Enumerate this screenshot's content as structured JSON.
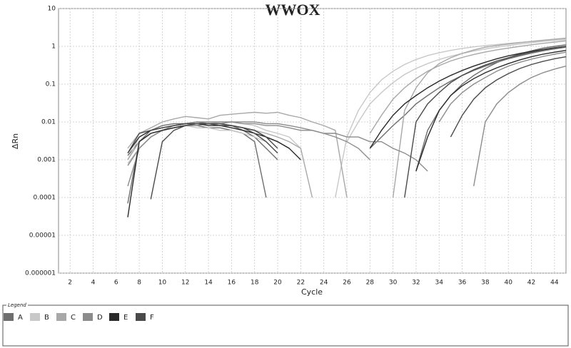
{
  "chart_data": {
    "type": "line",
    "title": "WWOX",
    "x_label": "Cycle",
    "y_label": "ΔRn",
    "log_y": true,
    "grid": true,
    "legend_title": "Legend",
    "legend_position": "bottom",
    "xlim": [
      1,
      45
    ],
    "xticks": [
      2,
      4,
      6,
      8,
      10,
      12,
      14,
      16,
      18,
      20,
      22,
      24,
      26,
      28,
      30,
      32,
      34,
      36,
      38,
      40,
      42,
      44
    ],
    "ylim": [
      1e-06,
      10
    ],
    "yticks": [
      1e-06,
      1e-05,
      0.0001,
      0.001,
      0.01,
      0.1,
      1,
      10
    ],
    "x": [
      1,
      2,
      3,
      4,
      5,
      6,
      7,
      8,
      9,
      10,
      11,
      12,
      13,
      14,
      15,
      16,
      17,
      18,
      19,
      20,
      21,
      22,
      23,
      24,
      25,
      26,
      27,
      28,
      29,
      30,
      31,
      32,
      33,
      34,
      35,
      36,
      37,
      38,
      39,
      40,
      41,
      42,
      43,
      44,
      45
    ],
    "series": [
      {
        "name": "A",
        "color": "#6e6e6e",
        "wells": [
          [
            null,
            null,
            null,
            null,
            null,
            null,
            7e-05,
            0.003,
            0.005,
            0.006,
            0.007,
            0.008,
            0.008,
            0.007,
            0.007,
            0.006,
            0.005,
            0.003,
            0.0001,
            null,
            null,
            null,
            null,
            null,
            null,
            null,
            null,
            0.002,
            0.004,
            0.008,
            0.015,
            0.03,
            0.05,
            0.08,
            0.12,
            0.17,
            0.23,
            0.3,
            0.38,
            0.47,
            0.56,
            0.66,
            0.76,
            0.86,
            0.95
          ],
          [
            null,
            null,
            null,
            null,
            null,
            null,
            0.0013,
            0.003,
            0.006,
            0.008,
            0.009,
            0.009,
            0.01,
            0.009,
            0.008,
            0.008,
            0.006,
            0.004,
            0.002,
            0.001,
            null,
            null,
            null,
            null,
            null,
            null,
            null,
            null,
            null,
            null,
            null,
            0.0005,
            0.006,
            0.02,
            0.05,
            0.1,
            0.17,
            0.26,
            0.37,
            0.5,
            0.63,
            0.76,
            0.9,
            1.0,
            1.1
          ]
        ]
      },
      {
        "name": "B",
        "color": "#c8c8c8",
        "wells": [
          [
            null,
            null,
            null,
            null,
            null,
            null,
            0.0008,
            0.002,
            0.004,
            0.006,
            0.007,
            0.008,
            0.009,
            0.009,
            0.01,
            0.01,
            0.009,
            0.008,
            0.006,
            0.005,
            0.004,
            0.002,
            null,
            null,
            null,
            0.003,
            0.01,
            0.03,
            0.06,
            0.11,
            0.18,
            0.26,
            0.35,
            0.45,
            0.55,
            0.65,
            0.75,
            0.85,
            0.95,
            1.05,
            1.15,
            1.25,
            1.35,
            1.45,
            1.55
          ],
          [
            null,
            null,
            null,
            null,
            null,
            null,
            0.001,
            0.004,
            0.006,
            0.007,
            0.008,
            0.008,
            0.007,
            0.007,
            0.006,
            0.006,
            0.005,
            0.004,
            0.003,
            null,
            null,
            null,
            null,
            null,
            0.0001,
            0.004,
            0.02,
            0.06,
            0.13,
            0.22,
            0.33,
            0.45,
            0.57,
            0.68,
            0.78,
            0.88,
            0.97,
            1.05,
            1.12,
            1.2,
            1.27,
            1.34,
            1.4,
            1.45,
            1.5
          ]
        ]
      },
      {
        "name": "C",
        "color": "#a8a8a8",
        "wells": [
          [
            null,
            null,
            null,
            null,
            null,
            null,
            0.002,
            0.005,
            0.007,
            0.01,
            0.012,
            0.014,
            0.013,
            0.012,
            0.015,
            0.016,
            0.017,
            0.018,
            0.017,
            0.018,
            0.015,
            0.013,
            0.01,
            0.008,
            0.006,
            0.0001,
            null,
            null,
            null,
            0.0001,
            0.02,
            0.08,
            0.2,
            0.35,
            0.5,
            0.65,
            0.8,
            0.95,
            1.05,
            1.15,
            1.25,
            1.35,
            1.45,
            1.55,
            1.65
          ],
          [
            null,
            null,
            null,
            null,
            null,
            null,
            0.001,
            0.003,
            0.005,
            0.006,
            0.007,
            0.008,
            0.009,
            0.009,
            0.008,
            0.008,
            0.007,
            0.006,
            0.005,
            0.004,
            0.003,
            0.002,
            0.0001,
            null,
            null,
            null,
            null,
            0.005,
            0.015,
            0.04,
            0.08,
            0.14,
            0.22,
            0.31,
            0.41,
            0.51,
            0.61,
            0.71,
            0.81,
            0.9,
            1.0,
            1.1,
            1.2,
            1.3,
            1.4
          ]
        ]
      },
      {
        "name": "D",
        "color": "#8c8c8c",
        "wells": [
          [
            null,
            null,
            null,
            null,
            null,
            null,
            0.0002,
            0.002,
            0.004,
            0.006,
            0.007,
            0.008,
            0.008,
            0.009,
            0.009,
            0.01,
            0.01,
            0.01,
            0.009,
            0.009,
            0.008,
            0.007,
            0.006,
            0.005,
            0.004,
            0.003,
            0.002,
            0.001,
            null,
            null,
            null,
            null,
            null,
            0.01,
            0.03,
            0.06,
            0.1,
            0.15,
            0.22,
            0.3,
            0.38,
            0.46,
            0.54,
            0.62,
            0.7
          ],
          [
            null,
            null,
            null,
            null,
            null,
            null,
            0.0007,
            0.002,
            0.004,
            0.006,
            0.008,
            0.009,
            0.01,
            0.01,
            0.01,
            0.01,
            0.009,
            0.009,
            0.008,
            0.008,
            0.007,
            0.006,
            0.006,
            0.005,
            0.005,
            0.004,
            0.004,
            0.003,
            0.003,
            0.002,
            0.0015,
            0.001,
            0.0005,
            null,
            null,
            null,
            0.0002,
            0.01,
            0.03,
            0.06,
            0.1,
            0.15,
            0.2,
            0.25,
            0.3
          ]
        ]
      },
      {
        "name": "E",
        "color": "#2a2a2a",
        "wells": [
          [
            null,
            null,
            null,
            null,
            null,
            null,
            3e-05,
            0.003,
            0.005,
            0.006,
            0.007,
            0.008,
            0.009,
            0.009,
            0.009,
            0.008,
            0.007,
            0.006,
            0.004,
            0.003,
            0.002,
            null,
            null,
            null,
            null,
            null,
            null,
            null,
            null,
            null,
            null,
            0.0005,
            0.004,
            0.02,
            0.05,
            0.09,
            0.14,
            0.2,
            0.27,
            0.35,
            0.44,
            0.53,
            0.62,
            0.7,
            0.78
          ],
          [
            null,
            null,
            null,
            null,
            null,
            null,
            0.0015,
            0.004,
            0.006,
            0.007,
            0.008,
            0.009,
            0.009,
            0.008,
            0.008,
            0.007,
            0.006,
            0.005,
            0.004,
            0.003,
            0.002,
            0.001,
            null,
            null,
            null,
            null,
            null,
            0.002,
            0.006,
            0.015,
            0.03,
            0.05,
            0.08,
            0.12,
            0.17,
            0.23,
            0.3,
            0.38,
            0.47,
            0.56,
            0.65,
            0.74,
            0.83,
            0.92,
            1.0
          ]
        ]
      },
      {
        "name": "F",
        "color": "#4a4a4a",
        "wells": [
          [
            null,
            null,
            null,
            null,
            null,
            null,
            null,
            null,
            9e-05,
            0.003,
            0.006,
            0.008,
            0.009,
            0.009,
            0.009,
            0.008,
            0.007,
            0.005,
            0.003,
            0.0015,
            null,
            null,
            null,
            null,
            null,
            null,
            null,
            null,
            null,
            null,
            null,
            null,
            null,
            null,
            0.004,
            0.015,
            0.04,
            0.08,
            0.13,
            0.19,
            0.26,
            0.33,
            0.4,
            0.47,
            0.53
          ],
          [
            null,
            null,
            null,
            null,
            null,
            null,
            0.0015,
            0.005,
            0.006,
            0.007,
            0.008,
            0.009,
            0.009,
            0.009,
            0.008,
            0.008,
            0.007,
            0.006,
            0.004,
            0.002,
            null,
            null,
            null,
            null,
            null,
            null,
            null,
            null,
            null,
            null,
            0.0001,
            0.01,
            0.03,
            0.06,
            0.11,
            0.17,
            0.24,
            0.32,
            0.41,
            0.5,
            0.6,
            0.7,
            0.8,
            0.9,
            1.0
          ]
        ]
      }
    ]
  }
}
